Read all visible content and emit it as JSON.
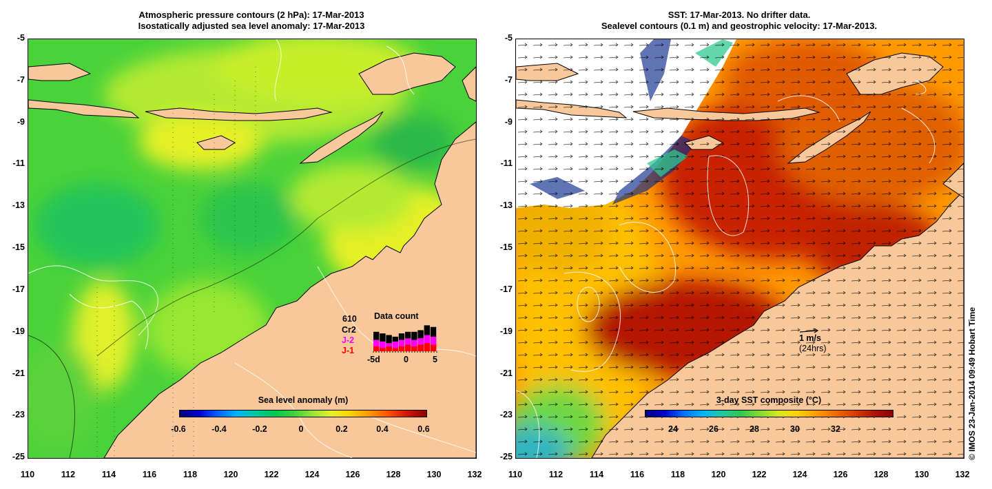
{
  "left_panel": {
    "title_line1": "Atmospheric pressure contours (2 hPa): 17-Mar-2013",
    "title_line2": "Isostatically adjusted sea level anomaly: 17-Mar-2013",
    "colorbar": {
      "title": "Sea level anomaly (m)",
      "ticks": [
        "-0.6",
        "-0.4",
        "-0.2",
        "0",
        "0.2",
        "0.4",
        "0.6"
      ]
    },
    "data_count": {
      "title": "Data count",
      "total": "610",
      "series": [
        {
          "label": "Cr2",
          "color": "#000000"
        },
        {
          "label": "J-2",
          "color": "#ff00ff"
        },
        {
          "label": "J-1",
          "color": "#ff0000"
        }
      ],
      "axis_ticks": [
        "-5d",
        "0",
        "5"
      ],
      "days": [
        -5,
        -4,
        -3,
        -2,
        -1,
        0,
        1,
        2,
        3,
        4
      ],
      "cr2": [
        24,
        22,
        20,
        18,
        22,
        24,
        24,
        26,
        32,
        30
      ],
      "j2": [
        14,
        12,
        10,
        12,
        14,
        16,
        14,
        16,
        20,
        18
      ],
      "j1": [
        6,
        4,
        6,
        4,
        6,
        8,
        6,
        8,
        10,
        8
      ]
    }
  },
  "right_panel": {
    "title_line1": "SST: 17-Mar-2013. No drifter data.",
    "title_line2": "Sealevel contours (0.1 m) and geostrophic velocity: 17-Mar-2013.",
    "colorbar": {
      "title": "3-day SST composite (°C)",
      "ticks": [
        "24",
        "26",
        "28",
        "30",
        "32"
      ]
    },
    "velocity_key_line1": "1 m/s",
    "velocity_key_line2": "(24hrs)"
  },
  "axes": {
    "lat_ticks": [
      "-5",
      "-7",
      "-9",
      "-11",
      "-13",
      "-15",
      "-17",
      "-19",
      "-21",
      "-23",
      "-25"
    ],
    "lon_ticks": [
      "110",
      "112",
      "114",
      "116",
      "118",
      "120",
      "122",
      "124",
      "126",
      "128",
      "130",
      "132"
    ],
    "lat_range": [
      -25,
      -5
    ],
    "lon_range": [
      110,
      132
    ]
  },
  "credit": "© IMOS 23-Jan-2014 09:49 Hobart Time",
  "colors": {
    "land": "#f8c89a",
    "sla_scale": [
      "#00007a",
      "#0000d0",
      "#0060ff",
      "#00b4ff",
      "#00c8a0",
      "#00c850",
      "#3cd23c",
      "#96e632",
      "#e6f028",
      "#ffd200",
      "#ff9600",
      "#ff5000",
      "#d21400",
      "#8c0000"
    ],
    "sst_scale": [
      "#000080",
      "#0000d0",
      "#0070ff",
      "#00b4ff",
      "#20c8a0",
      "#30c850",
      "#80dc30",
      "#d8e820",
      "#ffd000",
      "#ff9a00",
      "#f06a00",
      "#d83c00",
      "#b01400",
      "#8c0000"
    ]
  }
}
